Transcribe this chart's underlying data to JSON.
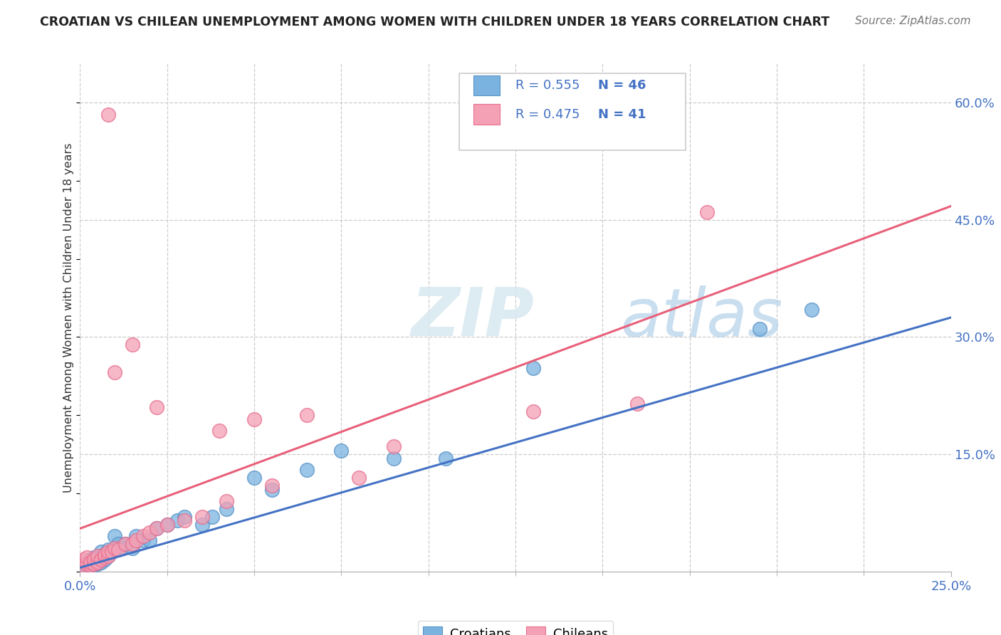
{
  "title": "CROATIAN VS CHILEAN UNEMPLOYMENT AMONG WOMEN WITH CHILDREN UNDER 18 YEARS CORRELATION CHART",
  "source": "Source: ZipAtlas.com",
  "ylabel": "Unemployment Among Women with Children Under 18 years",
  "xlim": [
    0.0,
    0.25
  ],
  "ylim": [
    0.0,
    0.65
  ],
  "ytick_positions": [
    0.0,
    0.15,
    0.3,
    0.45,
    0.6
  ],
  "ytick_labels_right": [
    "",
    "15.0%",
    "30.0%",
    "45.0%",
    "60.0%"
  ],
  "blue_color": "#7ab3e0",
  "pink_color": "#f4a0b5",
  "blue_edge_color": "#5a93c8",
  "pink_edge_color": "#e87090",
  "blue_line_color": "#4472c4",
  "pink_line_color": "#e8607a",
  "axis_color": "#4472c4",
  "legend_label1": "Croatians",
  "legend_label2": "Chileans",
  "watermark_zip": "ZIP",
  "watermark_atlas": "atlas",
  "blue_intercept": 0.005,
  "blue_slope": 1.28,
  "pink_intercept": 0.055,
  "pink_slope": 1.65,
  "croatian_x": [
    0.001,
    0.001,
    0.002,
    0.002,
    0.002,
    0.003,
    0.003,
    0.003,
    0.004,
    0.004,
    0.004,
    0.005,
    0.005,
    0.006,
    0.006,
    0.006,
    0.007,
    0.007,
    0.008,
    0.008,
    0.009,
    0.01,
    0.01,
    0.011,
    0.012,
    0.013,
    0.015,
    0.016,
    0.018,
    0.02,
    0.022,
    0.025,
    0.028,
    0.03,
    0.035,
    0.038,
    0.042,
    0.05,
    0.055,
    0.065,
    0.075,
    0.09,
    0.105,
    0.13,
    0.195,
    0.21
  ],
  "croatian_y": [
    0.005,
    0.008,
    0.006,
    0.01,
    0.012,
    0.007,
    0.01,
    0.015,
    0.008,
    0.012,
    0.018,
    0.01,
    0.015,
    0.012,
    0.018,
    0.025,
    0.015,
    0.022,
    0.02,
    0.028,
    0.025,
    0.028,
    0.045,
    0.035,
    0.03,
    0.035,
    0.03,
    0.045,
    0.04,
    0.04,
    0.055,
    0.06,
    0.065,
    0.07,
    0.06,
    0.07,
    0.08,
    0.12,
    0.105,
    0.13,
    0.155,
    0.145,
    0.145,
    0.26,
    0.31,
    0.335
  ],
  "chilean_x": [
    0.001,
    0.001,
    0.002,
    0.002,
    0.003,
    0.003,
    0.004,
    0.004,
    0.005,
    0.005,
    0.006,
    0.007,
    0.007,
    0.008,
    0.008,
    0.009,
    0.01,
    0.011,
    0.013,
    0.015,
    0.016,
    0.018,
    0.02,
    0.022,
    0.025,
    0.03,
    0.035,
    0.042,
    0.055,
    0.09,
    0.13,
    0.16,
    0.01,
    0.015,
    0.022,
    0.04,
    0.05,
    0.065,
    0.08,
    0.18,
    0.008
  ],
  "chilean_y": [
    0.008,
    0.015,
    0.01,
    0.018,
    0.008,
    0.012,
    0.01,
    0.015,
    0.012,
    0.02,
    0.015,
    0.018,
    0.022,
    0.02,
    0.025,
    0.025,
    0.03,
    0.028,
    0.035,
    0.035,
    0.04,
    0.045,
    0.05,
    0.055,
    0.06,
    0.065,
    0.07,
    0.09,
    0.11,
    0.16,
    0.205,
    0.215,
    0.255,
    0.29,
    0.21,
    0.18,
    0.195,
    0.2,
    0.12,
    0.46,
    0.585
  ]
}
